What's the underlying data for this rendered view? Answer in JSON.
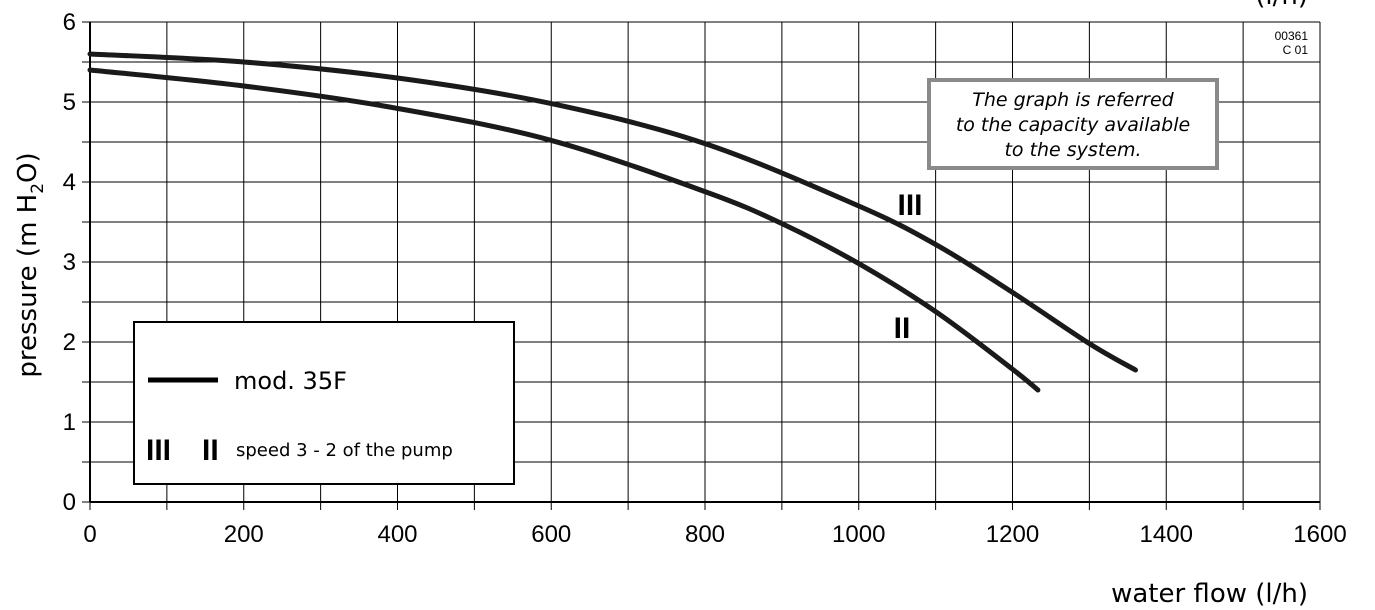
{
  "chart_data": {
    "type": "line",
    "xlabel": "water flow (l/h)",
    "ylabel": "pressure (m H",
    "ylabel_sub": "2",
    "ylabel_end": "O)",
    "corner_text_partial": "(l/h)",
    "xlim": [
      0,
      1600
    ],
    "ylim": [
      0,
      6
    ],
    "x_ticks": [
      "0",
      "200",
      "400",
      "600",
      "800",
      "1000",
      "1200",
      "1400",
      "1600"
    ],
    "y_ticks": [
      "0",
      "1",
      "2",
      "3",
      "4",
      "5",
      "6"
    ],
    "grid": true,
    "code": [
      "00361",
      "C 01"
    ],
    "note": [
      "The graph is referred",
      "to the capacity available",
      "to the system."
    ],
    "series": [
      {
        "name": "III",
        "x": [
          0,
          200,
          400,
          600,
          800,
          1000,
          1100,
          1200,
          1300,
          1360
        ],
        "y": [
          5.6,
          5.5,
          5.3,
          4.98,
          4.48,
          3.7,
          3.22,
          2.62,
          1.98,
          1.65
        ]
      },
      {
        "name": "II",
        "x": [
          0,
          200,
          400,
          600,
          800,
          900,
          1000,
          1100,
          1200,
          1233
        ],
        "y": [
          5.4,
          5.2,
          4.92,
          4.52,
          3.88,
          3.48,
          2.98,
          2.38,
          1.66,
          1.4
        ]
      }
    ],
    "legend": {
      "model_label": "mod. 35F",
      "speed_symbols": [
        "III",
        "II"
      ],
      "speed_label": "speed 3 - 2 of the pump"
    }
  }
}
